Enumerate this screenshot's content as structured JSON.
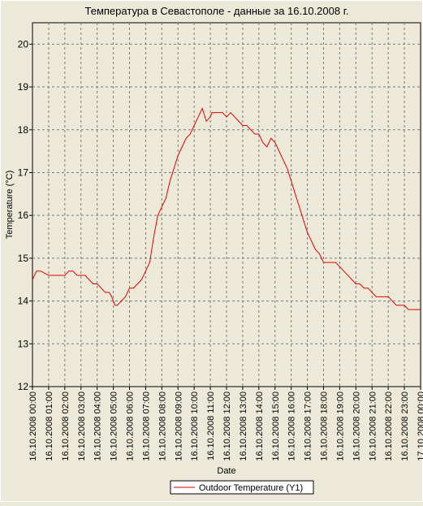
{
  "chart_data": {
    "type": "line",
    "title": "Температура в Севастополе - данные за 16.10.2008 г.",
    "xlabel": "Date",
    "ylabel": "Temperature (°C)",
    "ylim": [
      12,
      20.5
    ],
    "yticks": [
      12,
      13,
      14,
      15,
      16,
      17,
      18,
      19,
      20
    ],
    "xlim": [
      0,
      24
    ],
    "grid": true,
    "legend_position": "bottom-center",
    "x_tick_labels": [
      "16.10.2008 00:00",
      "16.10.2008 01:00",
      "16.10.2008 02:00",
      "16.10.2008 03:00",
      "16.10.2008 04:00",
      "16.10.2008 05:00",
      "16.10.2008 06:00",
      "16.10.2008 07:00",
      "16.10.2008 08:00",
      "16.10.2008 09:00",
      "16.10.2008 10:00",
      "16.10.2008 11:00",
      "16.10.2008 12:00",
      "16.10.2008 13:00",
      "16.10.2008 14:00",
      "16.10.2008 15:00",
      "16.10.2008 16:00",
      "16.10.2008 17:00",
      "16.10.2008 18:00",
      "16.10.2008 19:00",
      "16.10.2008 20:00",
      "16.10.2008 21:00",
      "16.10.2008 22:00",
      "16.10.2008 23:00",
      "17.10.2008 00:00"
    ],
    "series": [
      {
        "name": "Outdoor Temperature (Y1)",
        "color": "#e00000",
        "x": [
          0,
          0.25,
          0.5,
          1,
          1.25,
          1.5,
          2,
          2.25,
          2.5,
          2.75,
          3,
          3.25,
          3.5,
          3.75,
          4,
          4.25,
          4.5,
          4.75,
          4.9,
          5,
          5.1,
          5.25,
          5.5,
          5.75,
          6,
          6.25,
          6.5,
          6.75,
          7,
          7.25,
          7.5,
          7.75,
          8,
          8.25,
          8.5,
          8.75,
          9,
          9.25,
          9.5,
          9.75,
          10,
          10.25,
          10.5,
          10.75,
          11,
          11.1,
          11.25,
          11.5,
          11.75,
          12,
          12.25,
          12.5,
          12.75,
          13,
          13.25,
          13.5,
          13.75,
          14,
          14.25,
          14.5,
          14.75,
          15,
          15.25,
          15.5,
          15.75,
          16,
          16.25,
          16.5,
          16.75,
          17,
          17.25,
          17.5,
          17.75,
          18,
          18.25,
          18.5,
          18.75,
          19,
          19.25,
          19.5,
          19.75,
          20,
          20.25,
          20.5,
          20.75,
          21,
          21.25,
          21.5,
          21.75,
          22,
          22.25,
          22.5,
          22.75,
          23,
          23.25,
          23.5,
          23.75,
          24
        ],
        "y": [
          14.5,
          14.7,
          14.7,
          14.6,
          14.6,
          14.6,
          14.6,
          14.7,
          14.7,
          14.6,
          14.6,
          14.6,
          14.5,
          14.4,
          14.4,
          14.3,
          14.2,
          14.2,
          14.1,
          14.0,
          13.9,
          13.9,
          14.0,
          14.1,
          14.3,
          14.3,
          14.4,
          14.5,
          14.7,
          14.9,
          15.5,
          16.0,
          16.2,
          16.4,
          16.8,
          17.1,
          17.4,
          17.6,
          17.8,
          17.9,
          18.1,
          18.3,
          18.5,
          18.2,
          18.3,
          18.4,
          18.4,
          18.4,
          18.4,
          18.3,
          18.4,
          18.3,
          18.2,
          18.1,
          18.1,
          18.0,
          17.9,
          17.9,
          17.7,
          17.6,
          17.8,
          17.7,
          17.5,
          17.3,
          17.1,
          16.8,
          16.5,
          16.2,
          15.9,
          15.6,
          15.4,
          15.2,
          15.1,
          14.9,
          14.9,
          14.9,
          14.9,
          14.8,
          14.7,
          14.6,
          14.5,
          14.4,
          14.4,
          14.3,
          14.3,
          14.2,
          14.1,
          14.1,
          14.1,
          14.1,
          14.0,
          13.9,
          13.9,
          13.9,
          13.8,
          13.8,
          13.8,
          13.8
        ]
      }
    ]
  }
}
